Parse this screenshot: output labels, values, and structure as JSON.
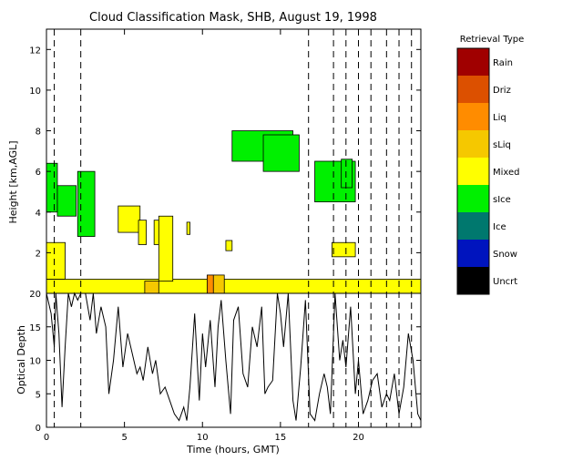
{
  "chart_data": {
    "title": "Cloud Classification Mask, SHB, August 19, 1998",
    "panels": [
      {
        "type": "heatmap",
        "ylabel": "Height [km,AGL]",
        "xlim": [
          0,
          24
        ],
        "ylim": [
          0,
          13
        ],
        "yticks": [
          "0",
          "2",
          "4",
          "6",
          "8",
          "10",
          "12"
        ],
        "legend": {
          "title": "Retrieval Type",
          "placement": "right",
          "entries": [
            {
              "label": "Rain",
              "color": "#a00000"
            },
            {
              "label": "Driz",
              "color": "#dc5000"
            },
            {
              "label": "Liq",
              "color": "#ff8c00"
            },
            {
              "label": "sLiq",
              "color": "#f5c800"
            },
            {
              "label": "Mixed",
              "color": "#ffff00"
            },
            {
              "label": "sIce",
              "color": "#00f000"
            },
            {
              "label": "Ice",
              "color": "#00786e"
            },
            {
              "label": "Snow",
              "color": "#0014be"
            },
            {
              "label": "Uncrt",
              "color": "#000000"
            }
          ]
        },
        "regions": [
          {
            "class": "Mixed",
            "x": [
              0.0,
              24.0
            ],
            "y": [
              0.0,
              0.7
            ]
          },
          {
            "class": "Mixed",
            "x": [
              0.0,
              1.2
            ],
            "y": [
              0.7,
              2.5
            ]
          },
          {
            "class": "Mixed",
            "x": [
              4.6,
              6.0
            ],
            "y": [
              3.0,
              4.3
            ]
          },
          {
            "class": "Mixed",
            "x": [
              5.9,
              6.4
            ],
            "y": [
              2.4,
              3.6
            ]
          },
          {
            "class": "Mixed",
            "x": [
              6.9,
              7.6
            ],
            "y": [
              2.4,
              3.6
            ]
          },
          {
            "class": "Mixed",
            "x": [
              7.2,
              8.1
            ],
            "y": [
              0.6,
              3.8
            ]
          },
          {
            "class": "Mixed",
            "x": [
              9.0,
              9.2
            ],
            "y": [
              2.9,
              3.5
            ]
          },
          {
            "class": "Mixed",
            "x": [
              11.5,
              11.9
            ],
            "y": [
              2.1,
              2.6
            ]
          },
          {
            "class": "Mixed",
            "x": [
              18.3,
              19.8
            ],
            "y": [
              1.8,
              2.5
            ]
          },
          {
            "class": "sLiq",
            "x": [
              6.3,
              7.2
            ],
            "y": [
              0.0,
              0.6
            ]
          },
          {
            "class": "sLiq",
            "x": [
              10.6,
              11.4
            ],
            "y": [
              0.0,
              0.9
            ]
          },
          {
            "class": "Liq",
            "x": [
              10.3,
              10.7
            ],
            "y": [
              0.0,
              0.9
            ]
          },
          {
            "class": "sIce",
            "x": [
              0.0,
              0.7
            ],
            "y": [
              4.0,
              6.4
            ]
          },
          {
            "class": "sIce",
            "x": [
              0.7,
              1.9
            ],
            "y": [
              3.8,
              5.3
            ]
          },
          {
            "class": "sIce",
            "x": [
              2.0,
              3.1
            ],
            "y": [
              2.8,
              6.0
            ]
          },
          {
            "class": "sIce",
            "x": [
              11.9,
              15.8
            ],
            "y": [
              6.5,
              8.0
            ]
          },
          {
            "class": "sIce",
            "x": [
              13.9,
              16.2
            ],
            "y": [
              6.0,
              7.8
            ]
          },
          {
            "class": "sIce",
            "x": [
              17.2,
              19.8
            ],
            "y": [
              4.5,
              6.5
            ]
          },
          {
            "class": "sIce",
            "x": [
              18.9,
              19.6
            ],
            "y": [
              5.2,
              6.6
            ]
          }
        ]
      },
      {
        "type": "line",
        "xlabel": "Time (hours, GMT)",
        "ylabel": "Optical Depth",
        "xlim": [
          0,
          24
        ],
        "ylim": [
          0,
          20
        ],
        "xticks": [
          "0",
          "5",
          "10",
          "15",
          "20"
        ],
        "yticks": [
          "0",
          "5",
          "10",
          "15",
          "20"
        ],
        "series": [
          {
            "x": [
              0.0,
              0.3,
              0.5,
              0.6,
              0.8,
              1.0,
              1.2,
              1.4,
              1.6,
              1.8,
              2.0,
              2.2,
              2.5,
              2.8,
              3.0,
              3.2,
              3.5,
              3.8,
              4.0,
              4.3,
              4.6,
              4.9,
              5.2,
              5.5,
              5.8,
              6.0,
              6.2,
              6.5,
              6.8,
              7.0,
              7.3,
              7.6,
              7.9,
              8.2,
              8.5,
              8.8,
              9.0,
              9.2,
              9.5,
              9.8,
              10.0,
              10.2,
              10.5,
              10.8,
              11.0,
              11.2,
              11.5,
              11.8,
              12.0,
              12.3,
              12.6,
              12.9,
              13.2,
              13.5,
              13.8,
              14.0,
              14.2,
              14.5,
              14.8,
              15.0,
              15.2,
              15.5,
              15.8,
              16.0,
              16.3,
              16.6,
              16.9,
              17.2,
              17.5,
              17.8,
              18.0,
              18.2,
              18.5,
              18.8,
              19.0,
              19.2,
              19.5,
              19.8,
              20.0,
              20.3,
              20.6,
              20.9,
              21.2,
              21.5,
              21.8,
              22.0,
              22.3,
              22.6,
              22.9,
              23.2,
              23.5,
              23.8,
              24.0
            ],
            "values": [
              20,
              17,
              12,
              20,
              14,
              3,
              12,
              20,
              18,
              20,
              19,
              20,
              20,
              16,
              20,
              14,
              18,
              15,
              5,
              10,
              18,
              9,
              14,
              11,
              8,
              9,
              7,
              12,
              8,
              10,
              5,
              6,
              4,
              2,
              1,
              3,
              1,
              6,
              17,
              4,
              14,
              9,
              16,
              6,
              15,
              19,
              10,
              2,
              16,
              18,
              8,
              6,
              15,
              12,
              18,
              5,
              6,
              7,
              20,
              17,
              12,
              20,
              4,
              1,
              9,
              19,
              2,
              1,
              5,
              8,
              6,
              2,
              20,
              10,
              13,
              9,
              18,
              5,
              10,
              2,
              4,
              7,
              8,
              3,
              5,
              4,
              8,
              2,
              6,
              14,
              10,
              2,
              1
            ]
          }
        ],
        "vertical_marks_hours": [
          0.5,
          2.2,
          16.8,
          18.4,
          19.2,
          20.0,
          20.8,
          21.8,
          22.6,
          23.4
        ]
      }
    ]
  }
}
